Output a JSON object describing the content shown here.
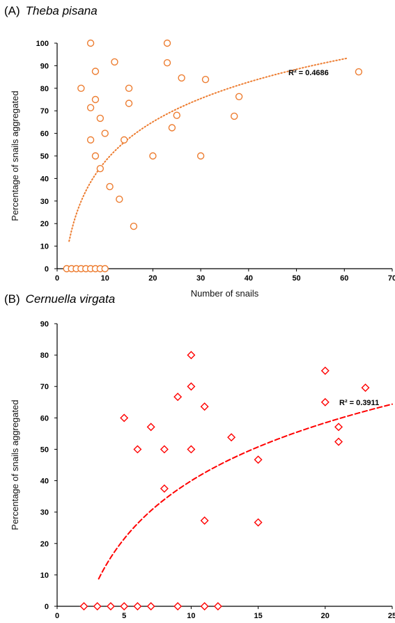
{
  "chart_data": [
    {
      "type": "scatter",
      "panel_label": "(A)",
      "species": "Theba pisana",
      "xlabel": "Number of snails",
      "ylabel": "Percentage of snails aggregated",
      "xlim": [
        0,
        70
      ],
      "ylim": [
        0,
        100
      ],
      "x_ticks": [
        0,
        10,
        20,
        30,
        40,
        50,
        60,
        70
      ],
      "y_ticks": [
        0,
        10,
        20,
        30,
        40,
        50,
        60,
        70,
        80,
        90,
        100
      ],
      "marker": "circle",
      "color": "#ED7D31",
      "trendline": {
        "style": "dotted",
        "x_range": [
          2.5,
          60.5
        ],
        "label": "R² = 0.4686"
      },
      "points": [
        {
          "x": 2,
          "y": 0
        },
        {
          "x": 3,
          "y": 0
        },
        {
          "x": 4,
          "y": 0
        },
        {
          "x": 5,
          "y": 0
        },
        {
          "x": 6,
          "y": 0
        },
        {
          "x": 7,
          "y": 0
        },
        {
          "x": 8,
          "y": 0
        },
        {
          "x": 9,
          "y": 0
        },
        {
          "x": 10,
          "y": 0
        },
        {
          "x": 5,
          "y": 80
        },
        {
          "x": 7,
          "y": 100
        },
        {
          "x": 7,
          "y": 71.4
        },
        {
          "x": 7,
          "y": 57.1
        },
        {
          "x": 8,
          "y": 87.5
        },
        {
          "x": 8,
          "y": 75
        },
        {
          "x": 8,
          "y": 50
        },
        {
          "x": 9,
          "y": 66.7
        },
        {
          "x": 9,
          "y": 44.4
        },
        {
          "x": 10,
          "y": 60
        },
        {
          "x": 11,
          "y": 36.4
        },
        {
          "x": 12,
          "y": 91.7
        },
        {
          "x": 13,
          "y": 30.8
        },
        {
          "x": 14,
          "y": 57.1
        },
        {
          "x": 15,
          "y": 80
        },
        {
          "x": 15,
          "y": 73.3
        },
        {
          "x": 16,
          "y": 18.8
        },
        {
          "x": 20,
          "y": 50
        },
        {
          "x": 23,
          "y": 100
        },
        {
          "x": 23,
          "y": 91.3
        },
        {
          "x": 24,
          "y": 62.5
        },
        {
          "x": 25,
          "y": 68
        },
        {
          "x": 26,
          "y": 84.6
        },
        {
          "x": 30,
          "y": 50
        },
        {
          "x": 31,
          "y": 83.9
        },
        {
          "x": 37,
          "y": 67.6
        },
        {
          "x": 38,
          "y": 76.3
        },
        {
          "x": 63,
          "y": 87.3
        }
      ]
    },
    {
      "type": "scatter",
      "panel_label": "(B)",
      "species": "Cernuella virgata",
      "xlabel": "Number of snails",
      "ylabel": "Percentage of snails aggregated",
      "xlim": [
        0,
        25
      ],
      "ylim": [
        0,
        90
      ],
      "x_ticks": [
        0,
        5,
        10,
        15,
        20,
        25
      ],
      "y_ticks": [
        0,
        10,
        20,
        30,
        40,
        50,
        60,
        70,
        80,
        90
      ],
      "marker": "diamond",
      "color": "#FF0000",
      "trendline": {
        "style": "dashed",
        "x_range": [
          3.1,
          25
        ],
        "label": "R² = 0.3911"
      },
      "points": [
        {
          "x": 2,
          "y": 0
        },
        {
          "x": 3,
          "y": 0
        },
        {
          "x": 4,
          "y": 0
        },
        {
          "x": 5,
          "y": 0
        },
        {
          "x": 6,
          "y": 0
        },
        {
          "x": 7,
          "y": 0
        },
        {
          "x": 9,
          "y": 0
        },
        {
          "x": 11,
          "y": 0
        },
        {
          "x": 12,
          "y": 0
        },
        {
          "x": 5,
          "y": 60
        },
        {
          "x": 6,
          "y": 50
        },
        {
          "x": 7,
          "y": 57.1
        },
        {
          "x": 8,
          "y": 50
        },
        {
          "x": 8,
          "y": 37.5
        },
        {
          "x": 9,
          "y": 66.7
        },
        {
          "x": 10,
          "y": 80
        },
        {
          "x": 10,
          "y": 70
        },
        {
          "x": 10,
          "y": 50
        },
        {
          "x": 11,
          "y": 63.6
        },
        {
          "x": 11,
          "y": 27.3
        },
        {
          "x": 13,
          "y": 53.8
        },
        {
          "x": 15,
          "y": 46.7
        },
        {
          "x": 15,
          "y": 26.7
        },
        {
          "x": 20,
          "y": 75
        },
        {
          "x": 20,
          "y": 65
        },
        {
          "x": 21,
          "y": 57.1
        },
        {
          "x": 21,
          "y": 52.4
        },
        {
          "x": 23,
          "y": 69.6
        }
      ]
    }
  ]
}
